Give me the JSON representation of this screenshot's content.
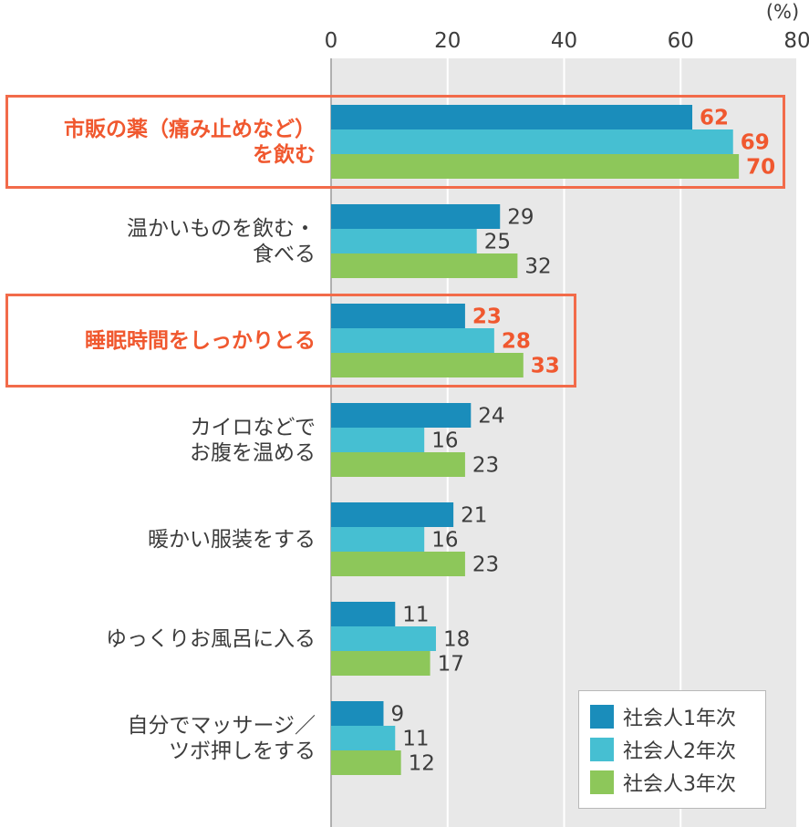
{
  "chart_data": {
    "type": "bar",
    "orientation": "horizontal",
    "unit": "(%)",
    "xlim": [
      0,
      80
    ],
    "ticks": [
      0,
      20,
      40,
      60,
      80
    ],
    "categories": [
      {
        "lines": [
          "市販の薬（痛み止めなど）",
          "を飲む"
        ],
        "highlight": true
      },
      {
        "lines": [
          "温かいものを飲む・",
          "食べる"
        ],
        "highlight": false
      },
      {
        "lines": [
          "睡眠時間をしっかりとる"
        ],
        "highlight": true
      },
      {
        "lines": [
          "カイロなどで",
          "お腹を温める"
        ],
        "highlight": false
      },
      {
        "lines": [
          "暖かい服装をする"
        ],
        "highlight": false
      },
      {
        "lines": [
          "ゆっくりお風呂に入る"
        ],
        "highlight": false
      },
      {
        "lines": [
          "自分でマッサージ／",
          "ツボ押しをする"
        ],
        "highlight": false
      }
    ],
    "series": [
      {
        "name": "社会人1年次",
        "color": "#1a8dbb",
        "values": [
          62,
          29,
          23,
          24,
          21,
          11,
          9
        ]
      },
      {
        "name": "社会人2年次",
        "color": "#46bfd2",
        "values": [
          69,
          25,
          28,
          16,
          16,
          18,
          11
        ]
      },
      {
        "name": "社会人3年次",
        "color": "#8dc75a",
        "values": [
          70,
          32,
          33,
          23,
          23,
          17,
          12
        ]
      }
    ],
    "grid": true,
    "legend": "bottom-right",
    "highlight_label_color": "#f0582f",
    "label_color": "#3c3c3c"
  }
}
